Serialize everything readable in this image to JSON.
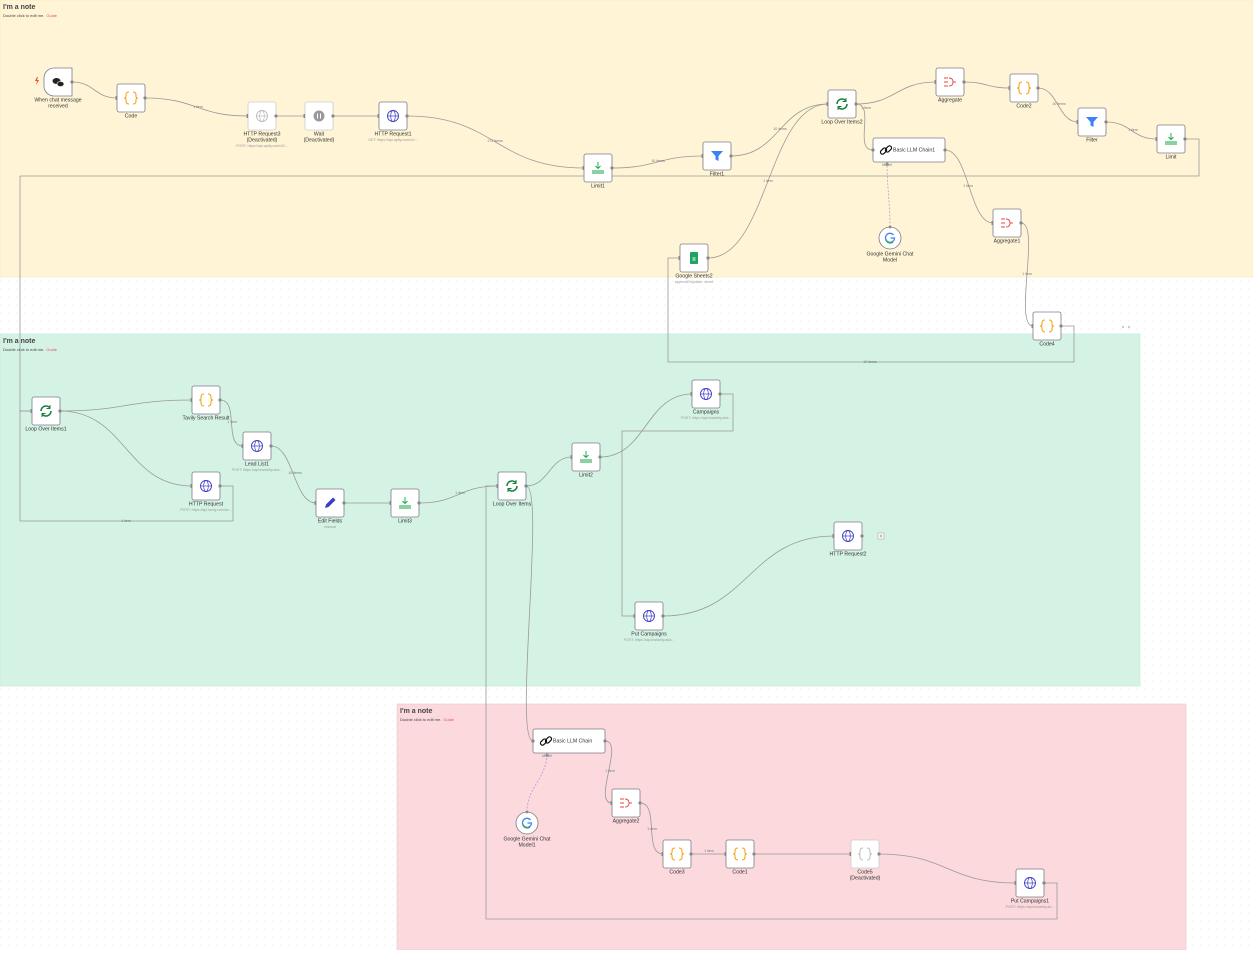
{
  "notes": [
    {
      "title": "I'm a note",
      "body": "Double click to edit me.",
      "link": "Guide"
    },
    {
      "title": "I'm a note",
      "body": "Double click to edit me.",
      "link": "Guide"
    },
    {
      "title": "I'm a note",
      "body": "Double click to edit me.",
      "link": "Guide"
    }
  ],
  "nodes": [
    {
      "label": [
        "When chat message",
        "received"
      ]
    },
    {
      "label": [
        "Code"
      ]
    },
    {
      "label": [
        "HTTP Request3",
        "(Deactivated)"
      ],
      "sublabel": "POST: https://api.apify.com/v2/..."
    },
    {
      "label": [
        "Wait",
        "(Deactivated)"
      ]
    },
    {
      "label": [
        "HTTP Request1"
      ],
      "sublabel": "GET: https://api.apify.com/v2/..."
    },
    {
      "label": [
        "Limit1"
      ]
    },
    {
      "label": [
        "Filter1"
      ]
    },
    {
      "label": [
        "Loop Over Items2"
      ]
    },
    {
      "label": [
        "Aggregate"
      ]
    },
    {
      "label": [
        "Code2"
      ]
    },
    {
      "label": [
        "Filter"
      ]
    },
    {
      "label": [
        "Limit"
      ]
    },
    {
      "label": [
        "Basic LLM Chain1"
      ],
      "port_label": "Model"
    },
    {
      "label": [
        "Google Gemini Chat",
        "Model"
      ]
    },
    {
      "label": [
        "Aggregate1"
      ]
    },
    {
      "label": [
        "Google Sheets2"
      ],
      "sublabel": "appendOrUpdate: sheet"
    },
    {
      "label": [
        "Code4"
      ]
    },
    {
      "label": [
        "Loop Over Items1"
      ]
    },
    {
      "label": [
        "Tavily Search Result"
      ]
    },
    {
      "label": [
        "Lead List1"
      ],
      "sublabel": "POST: https://api.instantly.ai/a..."
    },
    {
      "label": [
        "HTTP Request"
      ],
      "sublabel": "POST: https://api.tavily.com/se..."
    },
    {
      "label": [
        "Edit Fields"
      ],
      "sublabel": "manual"
    },
    {
      "label": [
        "Limit3"
      ]
    },
    {
      "label": [
        "Loop Over Items"
      ]
    },
    {
      "label": [
        "Limit2"
      ]
    },
    {
      "label": [
        "Campaigns"
      ],
      "sublabel": "POST: https://api.instantly.ai/a..."
    },
    {
      "label": [
        "HTTP Request2"
      ]
    },
    {
      "label": [
        "Put Campaigns"
      ],
      "sublabel": "POST: https://api.instantly.ai/a..."
    },
    {
      "label": [
        "Basic LLM Chain"
      ],
      "port_label": "Model"
    },
    {
      "label": [
        "Google Gemini Chat",
        "Model1"
      ]
    },
    {
      "label": [
        "Aggregate2"
      ]
    },
    {
      "label": [
        "Code3"
      ]
    },
    {
      "label": [
        "Code1"
      ]
    },
    {
      "label": [
        "Code5",
        "(Deactivated)"
      ]
    },
    {
      "label": [
        "Put Campaigns1"
      ],
      "sublabel": "POST: https://api.instantly.ai/..."
    }
  ],
  "edge_labels": [
    "1 item",
    "172 items",
    "10 items",
    "10 items",
    "1 item",
    "10 items",
    "1 item",
    "1 item",
    "1 item",
    "1 item",
    "10 items",
    "1 item",
    "10 items",
    "1 item",
    "1 item",
    "1 item",
    "1 item",
    "1 item"
  ]
}
